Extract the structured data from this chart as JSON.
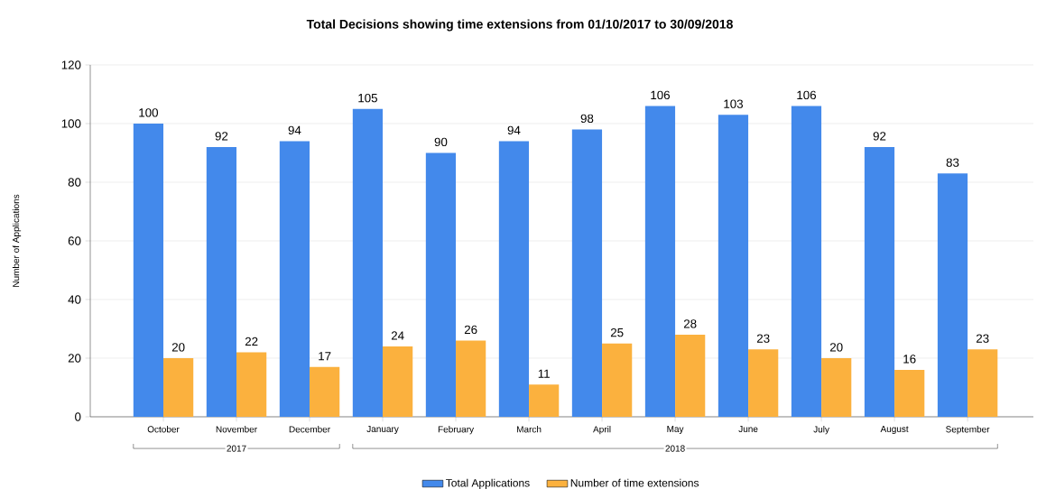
{
  "chart_data": {
    "type": "bar",
    "title": "Total Decisions showing time extensions from 01/10/2017 to 30/09/2018",
    "ylabel": "Number of Applications",
    "categories": [
      "October",
      "November",
      "December",
      "January",
      "February",
      "March",
      "April",
      "May",
      "June",
      "July",
      "August",
      "September"
    ],
    "series": [
      {
        "name": "Total Applications",
        "color": "#4389eb",
        "values": [
          100,
          92,
          94,
          105,
          90,
          94,
          98,
          106,
          103,
          106,
          92,
          83
        ]
      },
      {
        "name": "Number of time extensions",
        "color": "#fbb13e",
        "values": [
          20,
          22,
          17,
          24,
          26,
          11,
          25,
          28,
          23,
          20,
          16,
          23
        ]
      }
    ],
    "annotations": [
      "2017",
      "2018"
    ],
    "ylim": [
      0,
      120
    ],
    "yticks": [
      0,
      20,
      40,
      60,
      80,
      100,
      120
    ],
    "grid": "y",
    "legend": "bottom",
    "data_labels": true
  }
}
